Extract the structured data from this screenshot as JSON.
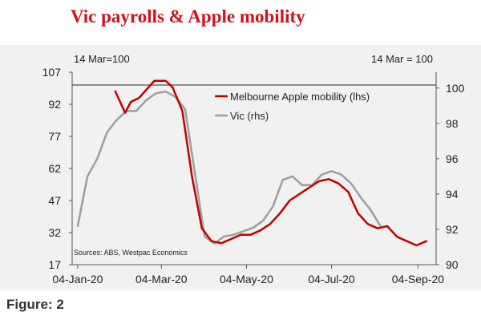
{
  "title": "Vic payrolls & Apple mobility",
  "caption": "Figure: 2",
  "chart_data": {
    "type": "line",
    "left_note": "14 Mar=100",
    "right_note": "14 Mar = 100",
    "source": "Sources: ABS, Westpac Economics",
    "x_tick_labels": [
      "04-Jan-20",
      "04-Mar-20",
      "04-May-20",
      "04-Jul-20",
      "04-Sep-20"
    ],
    "x_tick_days": [
      0,
      60,
      121,
      182,
      244
    ],
    "y_left": {
      "ticks": [
        "107",
        "92",
        "77",
        "62",
        "47",
        "32",
        "17"
      ],
      "lim": [
        17,
        107
      ]
    },
    "y_right": {
      "ticks": [
        "100",
        "98",
        "96",
        "94",
        "92",
        "90"
      ],
      "lim": [
        90,
        100.9
      ]
    },
    "reference_line": {
      "axis": "left",
      "value": 101
    },
    "series": [
      {
        "name": "Melbourne Apple mobility (lhs)",
        "axis": "left",
        "color": "#c00000",
        "points": [
          [
            27,
            98
          ],
          [
            34,
            88
          ],
          [
            38,
            93
          ],
          [
            44,
            95
          ],
          [
            55,
            103
          ],
          [
            63,
            103
          ],
          [
            68,
            100
          ],
          [
            75,
            89
          ],
          [
            82,
            58
          ],
          [
            89,
            34
          ],
          [
            96,
            28
          ],
          [
            103,
            27
          ],
          [
            110,
            29
          ],
          [
            117,
            31
          ],
          [
            124,
            31
          ],
          [
            131,
            33
          ],
          [
            138,
            36
          ],
          [
            145,
            41
          ],
          [
            152,
            47
          ],
          [
            159,
            50
          ],
          [
            166,
            53
          ],
          [
            173,
            56
          ],
          [
            180,
            57
          ],
          [
            187,
            55
          ],
          [
            194,
            51
          ],
          [
            201,
            41
          ],
          [
            208,
            36
          ],
          [
            215,
            34
          ],
          [
            222,
            35
          ],
          [
            229,
            30
          ],
          [
            236,
            28
          ],
          [
            243,
            26
          ],
          [
            250,
            28
          ]
        ]
      },
      {
        "name": "Vic (rhs)",
        "axis": "right",
        "color": "#9e9e9e",
        "points": [
          [
            0,
            92.2
          ],
          [
            7,
            95
          ],
          [
            14,
            96
          ],
          [
            21,
            97.5
          ],
          [
            28,
            98.2
          ],
          [
            35,
            98.7
          ],
          [
            42,
            98.7
          ],
          [
            49,
            99.3
          ],
          [
            56,
            99.7
          ],
          [
            63,
            99.8
          ],
          [
            70,
            99.5
          ],
          [
            77,
            98.8
          ],
          [
            84,
            95.2
          ],
          [
            91,
            91.6
          ],
          [
            98,
            91.2
          ],
          [
            105,
            91.6
          ],
          [
            112,
            91.7
          ],
          [
            119,
            91.9
          ],
          [
            126,
            92.1
          ],
          [
            133,
            92.5
          ],
          [
            140,
            93.3
          ],
          [
            147,
            94.8
          ],
          [
            154,
            95
          ],
          [
            161,
            94.5
          ],
          [
            168,
            94.5
          ],
          [
            175,
            95.1
          ],
          [
            182,
            95.3
          ],
          [
            189,
            95.1
          ],
          [
            196,
            94.6
          ],
          [
            203,
            93.8
          ],
          [
            210,
            93.1
          ],
          [
            217,
            92.2
          ]
        ]
      }
    ]
  }
}
